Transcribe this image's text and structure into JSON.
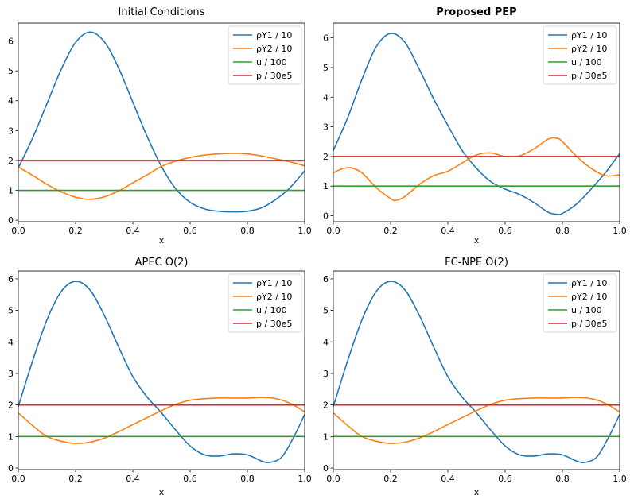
{
  "colors": {
    "rhoY1": "#1f77b4",
    "rhoY2": "#ff7f0e",
    "u": "#2ca02c",
    "p": "#d62728"
  },
  "chart_data": [
    {
      "type": "line",
      "title": "Initial Conditions",
      "title_bold": false,
      "xlabel": "x",
      "ylabel": "",
      "xlim": [
        0,
        1
      ],
      "ylim": [
        -0.05,
        6.6
      ],
      "xticks": [
        "0.0",
        "0.2",
        "0.4",
        "0.6",
        "0.8",
        "1.0"
      ],
      "yticks": [
        "0",
        "1",
        "2",
        "3",
        "4",
        "5",
        "6"
      ],
      "legend": {
        "position": "top-right",
        "labels": [
          "ρY1 / 10",
          "ρY2 / 10",
          "u / 100",
          "p / 30e5"
        ]
      },
      "series": [
        {
          "name": "ρY1 / 10",
          "color": "#1f77b4",
          "x": [
            0,
            0.05,
            0.1,
            0.15,
            0.2,
            0.25,
            0.3,
            0.35,
            0.4,
            0.45,
            0.5,
            0.55,
            0.6,
            0.65,
            0.7,
            0.75,
            0.8,
            0.85,
            0.9,
            0.95,
            1.0
          ],
          "y": [
            1.75,
            2.75,
            3.9,
            5.05,
            5.95,
            6.3,
            5.98,
            5.1,
            3.95,
            2.8,
            1.8,
            1.05,
            0.6,
            0.38,
            0.3,
            0.28,
            0.3,
            0.42,
            0.7,
            1.1,
            1.65
          ]
        },
        {
          "name": "ρY2 / 10",
          "color": "#ff7f0e",
          "x": [
            0,
            0.05,
            0.1,
            0.15,
            0.2,
            0.25,
            0.3,
            0.35,
            0.4,
            0.45,
            0.5,
            0.55,
            0.6,
            0.65,
            0.7,
            0.75,
            0.8,
            0.85,
            0.9,
            0.95,
            1.0
          ],
          "y": [
            1.78,
            1.5,
            1.2,
            0.95,
            0.77,
            0.7,
            0.78,
            0.98,
            1.25,
            1.52,
            1.8,
            1.98,
            2.1,
            2.18,
            2.22,
            2.24,
            2.22,
            2.15,
            2.05,
            1.95,
            1.82
          ]
        },
        {
          "name": "u / 100",
          "color": "#2ca02c",
          "x": [
            0,
            1
          ],
          "y": [
            1.0,
            1.0
          ]
        },
        {
          "name": "p / 30e5",
          "color": "#d62728",
          "x": [
            0,
            1
          ],
          "y": [
            2.0,
            2.0
          ]
        }
      ]
    },
    {
      "type": "line",
      "title": "Proposed PEP",
      "title_bold": true,
      "xlabel": "x",
      "ylabel": "",
      "xlim": [
        0,
        1
      ],
      "ylim": [
        -0.2,
        6.5
      ],
      "xticks": [
        "0.0",
        "0.2",
        "0.4",
        "0.6",
        "0.8",
        "1.0"
      ],
      "yticks": [
        "0",
        "1",
        "2",
        "3",
        "4",
        "5",
        "6"
      ],
      "legend": {
        "position": "top-right",
        "labels": [
          "ρY1 / 10",
          "ρY2 / 10",
          "u / 100",
          "p / 30e5"
        ]
      },
      "series": [
        {
          "name": "ρY1 / 10",
          "color": "#1f77b4",
          "x": [
            0,
            0.05,
            0.1,
            0.15,
            0.2,
            0.25,
            0.3,
            0.35,
            0.4,
            0.45,
            0.5,
            0.55,
            0.6,
            0.65,
            0.7,
            0.75,
            0.78,
            0.8,
            0.85,
            0.9,
            0.95,
            1.0
          ],
          "y": [
            2.2,
            3.3,
            4.6,
            5.7,
            6.15,
            5.85,
            4.95,
            3.95,
            3.05,
            2.2,
            1.6,
            1.15,
            0.9,
            0.72,
            0.45,
            0.12,
            0.05,
            0.08,
            0.4,
            0.9,
            1.45,
            2.1
          ]
        },
        {
          "name": "ρY2 / 10",
          "color": "#ff7f0e",
          "x": [
            0,
            0.03,
            0.06,
            0.1,
            0.15,
            0.2,
            0.22,
            0.25,
            0.3,
            0.35,
            0.4,
            0.45,
            0.5,
            0.55,
            0.6,
            0.65,
            0.7,
            0.75,
            0.78,
            0.8,
            0.85,
            0.9,
            0.95,
            1.0
          ],
          "y": [
            1.45,
            1.58,
            1.62,
            1.45,
            0.95,
            0.58,
            0.52,
            0.65,
            1.05,
            1.35,
            1.5,
            1.78,
            2.05,
            2.12,
            2.0,
            2.02,
            2.25,
            2.58,
            2.62,
            2.5,
            2.0,
            1.6,
            1.35,
            1.38
          ]
        },
        {
          "name": "u / 100",
          "color": "#2ca02c",
          "x": [
            0,
            1
          ],
          "y": [
            1.0,
            1.0
          ]
        },
        {
          "name": "p / 30e5",
          "color": "#d62728",
          "x": [
            0,
            1
          ],
          "y": [
            2.0,
            2.0
          ]
        }
      ]
    },
    {
      "type": "line",
      "title": "APEC O(2)",
      "title_bold": false,
      "xlabel": "x",
      "ylabel": "",
      "xlim": [
        0,
        1
      ],
      "ylim": [
        -0.05,
        6.25
      ],
      "xticks": [
        "0.0",
        "0.2",
        "0.4",
        "0.6",
        "0.8",
        "1.0"
      ],
      "yticks": [
        "0",
        "1",
        "2",
        "3",
        "4",
        "5",
        "6"
      ],
      "legend": {
        "position": "top-right",
        "labels": [
          "ρY1 / 10",
          "ρY2 / 10",
          "u / 100",
          "p / 30e5"
        ]
      },
      "series": [
        {
          "name": "ρY1 / 10",
          "color": "#1f77b4",
          "x": [
            0,
            0.05,
            0.1,
            0.15,
            0.2,
            0.25,
            0.3,
            0.35,
            0.4,
            0.45,
            0.5,
            0.55,
            0.6,
            0.65,
            0.7,
            0.75,
            0.8,
            0.85,
            0.88,
            0.92,
            0.96,
            1.0
          ],
          "y": [
            1.95,
            3.4,
            4.7,
            5.6,
            5.92,
            5.65,
            4.85,
            3.85,
            2.9,
            2.25,
            1.75,
            1.2,
            0.7,
            0.42,
            0.38,
            0.45,
            0.42,
            0.22,
            0.18,
            0.35,
            0.95,
            1.7
          ]
        },
        {
          "name": "ρY2 / 10",
          "color": "#ff7f0e",
          "x": [
            0,
            0.05,
            0.1,
            0.15,
            0.2,
            0.25,
            0.3,
            0.35,
            0.4,
            0.45,
            0.5,
            0.55,
            0.6,
            0.65,
            0.7,
            0.75,
            0.8,
            0.85,
            0.9,
            0.95,
            1.0
          ],
          "y": [
            1.75,
            1.35,
            1.0,
            0.85,
            0.78,
            0.82,
            0.95,
            1.15,
            1.38,
            1.6,
            1.82,
            2.02,
            2.15,
            2.2,
            2.22,
            2.22,
            2.22,
            2.24,
            2.2,
            2.05,
            1.78
          ]
        },
        {
          "name": "u / 100",
          "color": "#2ca02c",
          "x": [
            0,
            1
          ],
          "y": [
            1.0,
            1.0
          ]
        },
        {
          "name": "p / 30e5",
          "color": "#d62728",
          "x": [
            0,
            1
          ],
          "y": [
            2.0,
            2.0
          ]
        }
      ]
    },
    {
      "type": "line",
      "title": "FC-NPE O(2)",
      "title_bold": false,
      "xlabel": "x",
      "ylabel": "",
      "xlim": [
        0,
        1
      ],
      "ylim": [
        -0.05,
        6.25
      ],
      "xticks": [
        "0.0",
        "0.2",
        "0.4",
        "0.6",
        "0.8",
        "1.0"
      ],
      "yticks": [
        "0",
        "1",
        "2",
        "3",
        "4",
        "5",
        "6"
      ],
      "legend": {
        "position": "top-right",
        "labels": [
          "ρY1 / 10",
          "ρY2 / 10",
          "u / 100",
          "p / 30e5"
        ]
      },
      "series": [
        {
          "name": "ρY1 / 10",
          "color": "#1f77b4",
          "x": [
            0,
            0.05,
            0.1,
            0.15,
            0.2,
            0.25,
            0.3,
            0.35,
            0.4,
            0.45,
            0.5,
            0.55,
            0.6,
            0.65,
            0.7,
            0.75,
            0.8,
            0.85,
            0.88,
            0.92,
            0.96,
            1.0
          ],
          "y": [
            1.95,
            3.4,
            4.7,
            5.6,
            5.92,
            5.65,
            4.85,
            3.85,
            2.9,
            2.25,
            1.75,
            1.2,
            0.7,
            0.42,
            0.38,
            0.45,
            0.42,
            0.22,
            0.18,
            0.35,
            0.95,
            1.7
          ]
        },
        {
          "name": "ρY2 / 10",
          "color": "#ff7f0e",
          "x": [
            0,
            0.05,
            0.1,
            0.15,
            0.2,
            0.25,
            0.3,
            0.35,
            0.4,
            0.45,
            0.5,
            0.55,
            0.6,
            0.65,
            0.7,
            0.75,
            0.8,
            0.85,
            0.9,
            0.95,
            1.0
          ],
          "y": [
            1.75,
            1.35,
            1.0,
            0.85,
            0.78,
            0.82,
            0.95,
            1.15,
            1.38,
            1.6,
            1.82,
            2.02,
            2.15,
            2.2,
            2.22,
            2.22,
            2.22,
            2.24,
            2.2,
            2.05,
            1.78
          ]
        },
        {
          "name": "u / 100",
          "color": "#2ca02c",
          "x": [
            0,
            1
          ],
          "y": [
            1.0,
            1.0
          ]
        },
        {
          "name": "p / 30e5",
          "color": "#d62728",
          "x": [
            0,
            1
          ],
          "y": [
            2.0,
            2.0
          ]
        }
      ]
    }
  ]
}
